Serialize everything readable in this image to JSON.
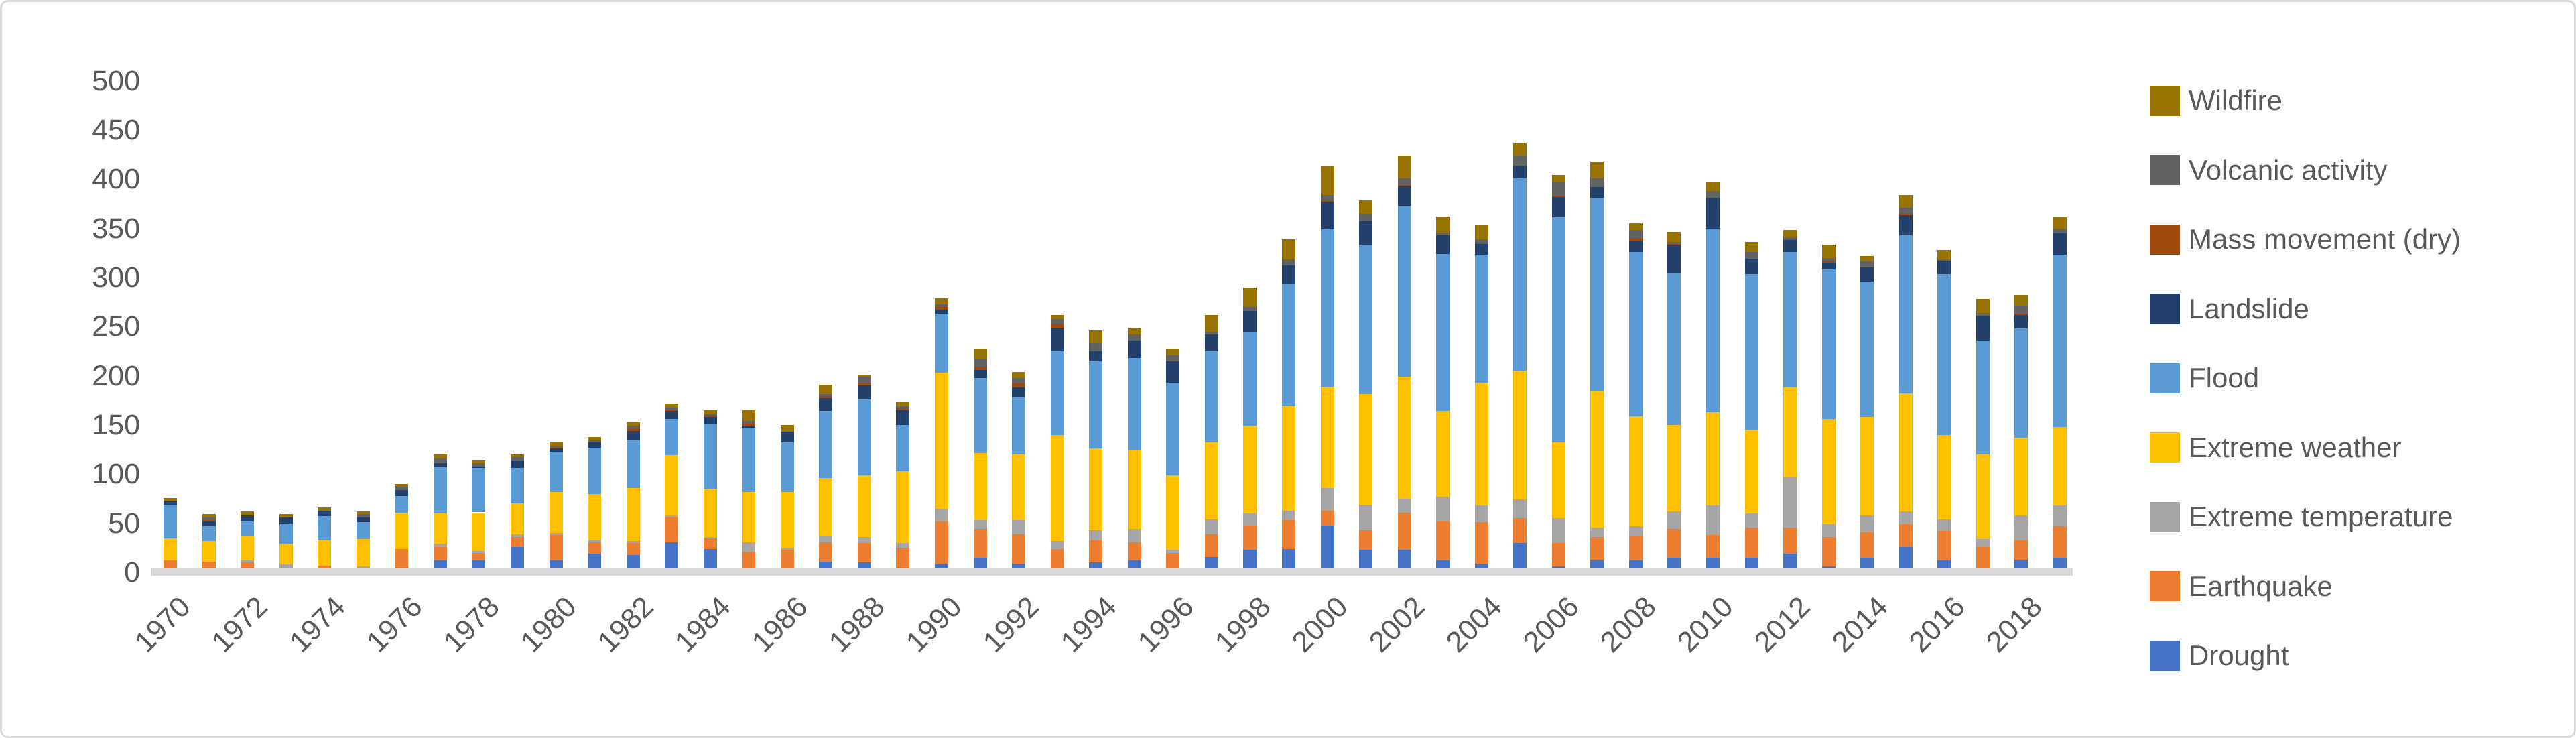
{
  "frame": {
    "background": "#FFFFFF",
    "border_color": "#D9D9D9",
    "axis_line_color": "#D9D9D9",
    "text_color": "#595959"
  },
  "chart_data": {
    "type": "bar",
    "stacked": true,
    "title": "",
    "xlabel": "",
    "ylabel": "",
    "ylim": [
      0,
      500
    ],
    "y_tick_step": 50,
    "y_tick_labels": [
      "0",
      "50",
      "100",
      "150",
      "200",
      "250",
      "300",
      "350",
      "400",
      "450",
      "500"
    ],
    "grid": false,
    "legend_position": "right",
    "legend_order_top_to_bottom": [
      "Wildfire",
      "Volcanic activity",
      "Mass movement (dry)",
      "Landslide",
      "Flood",
      "Extreme weather",
      "Extreme temperature",
      "Earthquake",
      "Drought"
    ],
    "categories": [
      1970,
      1971,
      1972,
      1973,
      1974,
      1975,
      1976,
      1977,
      1978,
      1979,
      1980,
      1981,
      1982,
      1983,
      1984,
      1985,
      1986,
      1987,
      1988,
      1989,
      1990,
      1991,
      1992,
      1993,
      1994,
      1995,
      1996,
      1997,
      1998,
      1999,
      2000,
      2001,
      2002,
      2003,
      2004,
      2005,
      2006,
      2007,
      2008,
      2009,
      2010,
      2011,
      2012,
      2013,
      2014,
      2015,
      2016,
      2017,
      2018,
      2019
    ],
    "x_tick_labels": [
      "1970",
      "1972",
      "1974",
      "1976",
      "1978",
      "1980",
      "1982",
      "1984",
      "1986",
      "1988",
      "1990",
      "1992",
      "1994",
      "1996",
      "1998",
      "2000",
      "2002",
      "2004",
      "2006",
      "2008",
      "2010",
      "2012",
      "2014",
      "2016",
      "2018"
    ],
    "series": [
      {
        "name": "Drought",
        "color": "#4472C4",
        "values": [
          1,
          5,
          5,
          1,
          3,
          0,
          5,
          12,
          12,
          26,
          12,
          19,
          18,
          31,
          24,
          1,
          2,
          11,
          10,
          5,
          8,
          15,
          9,
          3,
          10,
          12,
          3,
          16,
          23,
          24,
          48,
          23,
          23,
          12,
          9,
          30,
          6,
          13,
          12,
          15,
          15,
          15,
          19,
          6,
          15,
          26,
          12,
          4,
          13,
          15
        ]
      },
      {
        "name": "Earthquake",
        "color": "#ED7D31",
        "values": [
          11,
          6,
          5,
          3,
          4,
          3,
          19,
          14,
          8,
          10,
          26,
          12,
          12,
          25,
          11,
          20,
          21,
          20,
          20,
          20,
          44,
          29,
          30,
          21,
          23,
          19,
          17,
          23,
          25,
          29,
          15,
          20,
          38,
          40,
          42,
          25,
          24,
          23,
          25,
          29,
          23,
          31,
          27,
          30,
          26,
          23,
          30,
          22,
          20,
          32
        ]
      },
      {
        "name": "Extreme temperature",
        "color": "#A6A6A6",
        "values": [
          0,
          0,
          2,
          4,
          0,
          3,
          0,
          3,
          2,
          3,
          2,
          2,
          2,
          2,
          1,
          10,
          2,
          6,
          6,
          5,
          13,
          9,
          14,
          8,
          10,
          13,
          3,
          15,
          12,
          10,
          23,
          26,
          14,
          25,
          17,
          19,
          25,
          10,
          10,
          18,
          30,
          14,
          51,
          13,
          17,
          13,
          12,
          8,
          25,
          21
        ]
      },
      {
        "name": "Extreme weather",
        "color": "#FFC000",
        "values": [
          23,
          21,
          25,
          21,
          26,
          28,
          37,
          31,
          39,
          31,
          42,
          47,
          54,
          61,
          49,
          51,
          57,
          59,
          63,
          73,
          138,
          68,
          67,
          108,
          83,
          80,
          76,
          78,
          89,
          106,
          103,
          112,
          124,
          87,
          125,
          131,
          77,
          138,
          112,
          88,
          95,
          85,
          91,
          107,
          100,
          120,
          86,
          86,
          79,
          80
        ]
      },
      {
        "name": "Flood",
        "color": "#5B9BD5",
        "values": [
          34,
          15,
          15,
          21,
          24,
          17,
          17,
          47,
          45,
          36,
          41,
          47,
          48,
          37,
          66,
          65,
          50,
          68,
          77,
          47,
          60,
          77,
          58,
          85,
          89,
          94,
          94,
          93,
          95,
          124,
          160,
          152,
          174,
          160,
          130,
          196,
          229,
          197,
          167,
          154,
          187,
          158,
          138,
          152,
          138,
          161,
          163,
          116,
          111,
          175
        ]
      },
      {
        "name": "Landslide",
        "color": "#24416B",
        "values": [
          4,
          5,
          6,
          6,
          6,
          5,
          6,
          4,
          2,
          7,
          3,
          5,
          10,
          8,
          7,
          2,
          11,
          13,
          14,
          15,
          4,
          8,
          10,
          24,
          10,
          18,
          22,
          17,
          22,
          19,
          28,
          24,
          20,
          19,
          11,
          13,
          21,
          11,
          11,
          29,
          31,
          16,
          12,
          7,
          14,
          20,
          14,
          25,
          14,
          22
        ]
      },
      {
        "name": "Mass movement (dry)",
        "color": "#9E480E",
        "values": [
          0,
          1,
          0,
          0,
          0,
          0,
          0,
          0,
          0,
          0,
          1,
          0,
          2,
          1,
          2,
          2,
          0,
          2,
          2,
          2,
          3,
          3,
          4,
          4,
          0,
          0,
          0,
          0,
          0,
          0,
          1,
          0,
          1,
          0,
          1,
          0,
          1,
          0,
          3,
          1,
          0,
          0,
          1,
          2,
          0,
          2,
          0,
          0,
          1,
          0
        ]
      },
      {
        "name": "Volcanic activity",
        "color": "#636363",
        "values": [
          0,
          3,
          0,
          0,
          0,
          3,
          3,
          5,
          3,
          4,
          2,
          2,
          3,
          3,
          1,
          3,
          0,
          2,
          7,
          2,
          3,
          8,
          6,
          5,
          8,
          6,
          6,
          3,
          4,
          6,
          6,
          8,
          7,
          2,
          4,
          10,
          14,
          9,
          8,
          2,
          7,
          7,
          2,
          3,
          6,
          6,
          1,
          3,
          8,
          5
        ]
      },
      {
        "name": "Wildfire",
        "color": "#997300",
        "values": [
          3,
          3,
          4,
          3,
          3,
          3,
          3,
          4,
          3,
          3,
          4,
          4,
          4,
          4,
          4,
          11,
          7,
          10,
          2,
          4,
          6,
          11,
          6,
          4,
          13,
          7,
          7,
          17,
          20,
          21,
          29,
          13,
          23,
          17,
          14,
          12,
          7,
          17,
          7,
          10,
          9,
          10,
          7,
          13,
          6,
          13,
          10,
          14,
          11,
          11
        ]
      }
    ],
    "legend": [
      {
        "label": "Wildfire",
        "color": "#997300"
      },
      {
        "label": "Volcanic activity",
        "color": "#636363"
      },
      {
        "label": "Mass movement (dry)",
        "color": "#9E480E"
      },
      {
        "label": "Landslide",
        "color": "#24416B"
      },
      {
        "label": "Flood",
        "color": "#5B9BD5"
      },
      {
        "label": "Extreme weather",
        "color": "#FFC000"
      },
      {
        "label": "Extreme temperature",
        "color": "#A6A6A6"
      },
      {
        "label": "Earthquake",
        "color": "#ED7D31"
      },
      {
        "label": "Drought",
        "color": "#4472C4"
      }
    ]
  },
  "layout_note": ""
}
